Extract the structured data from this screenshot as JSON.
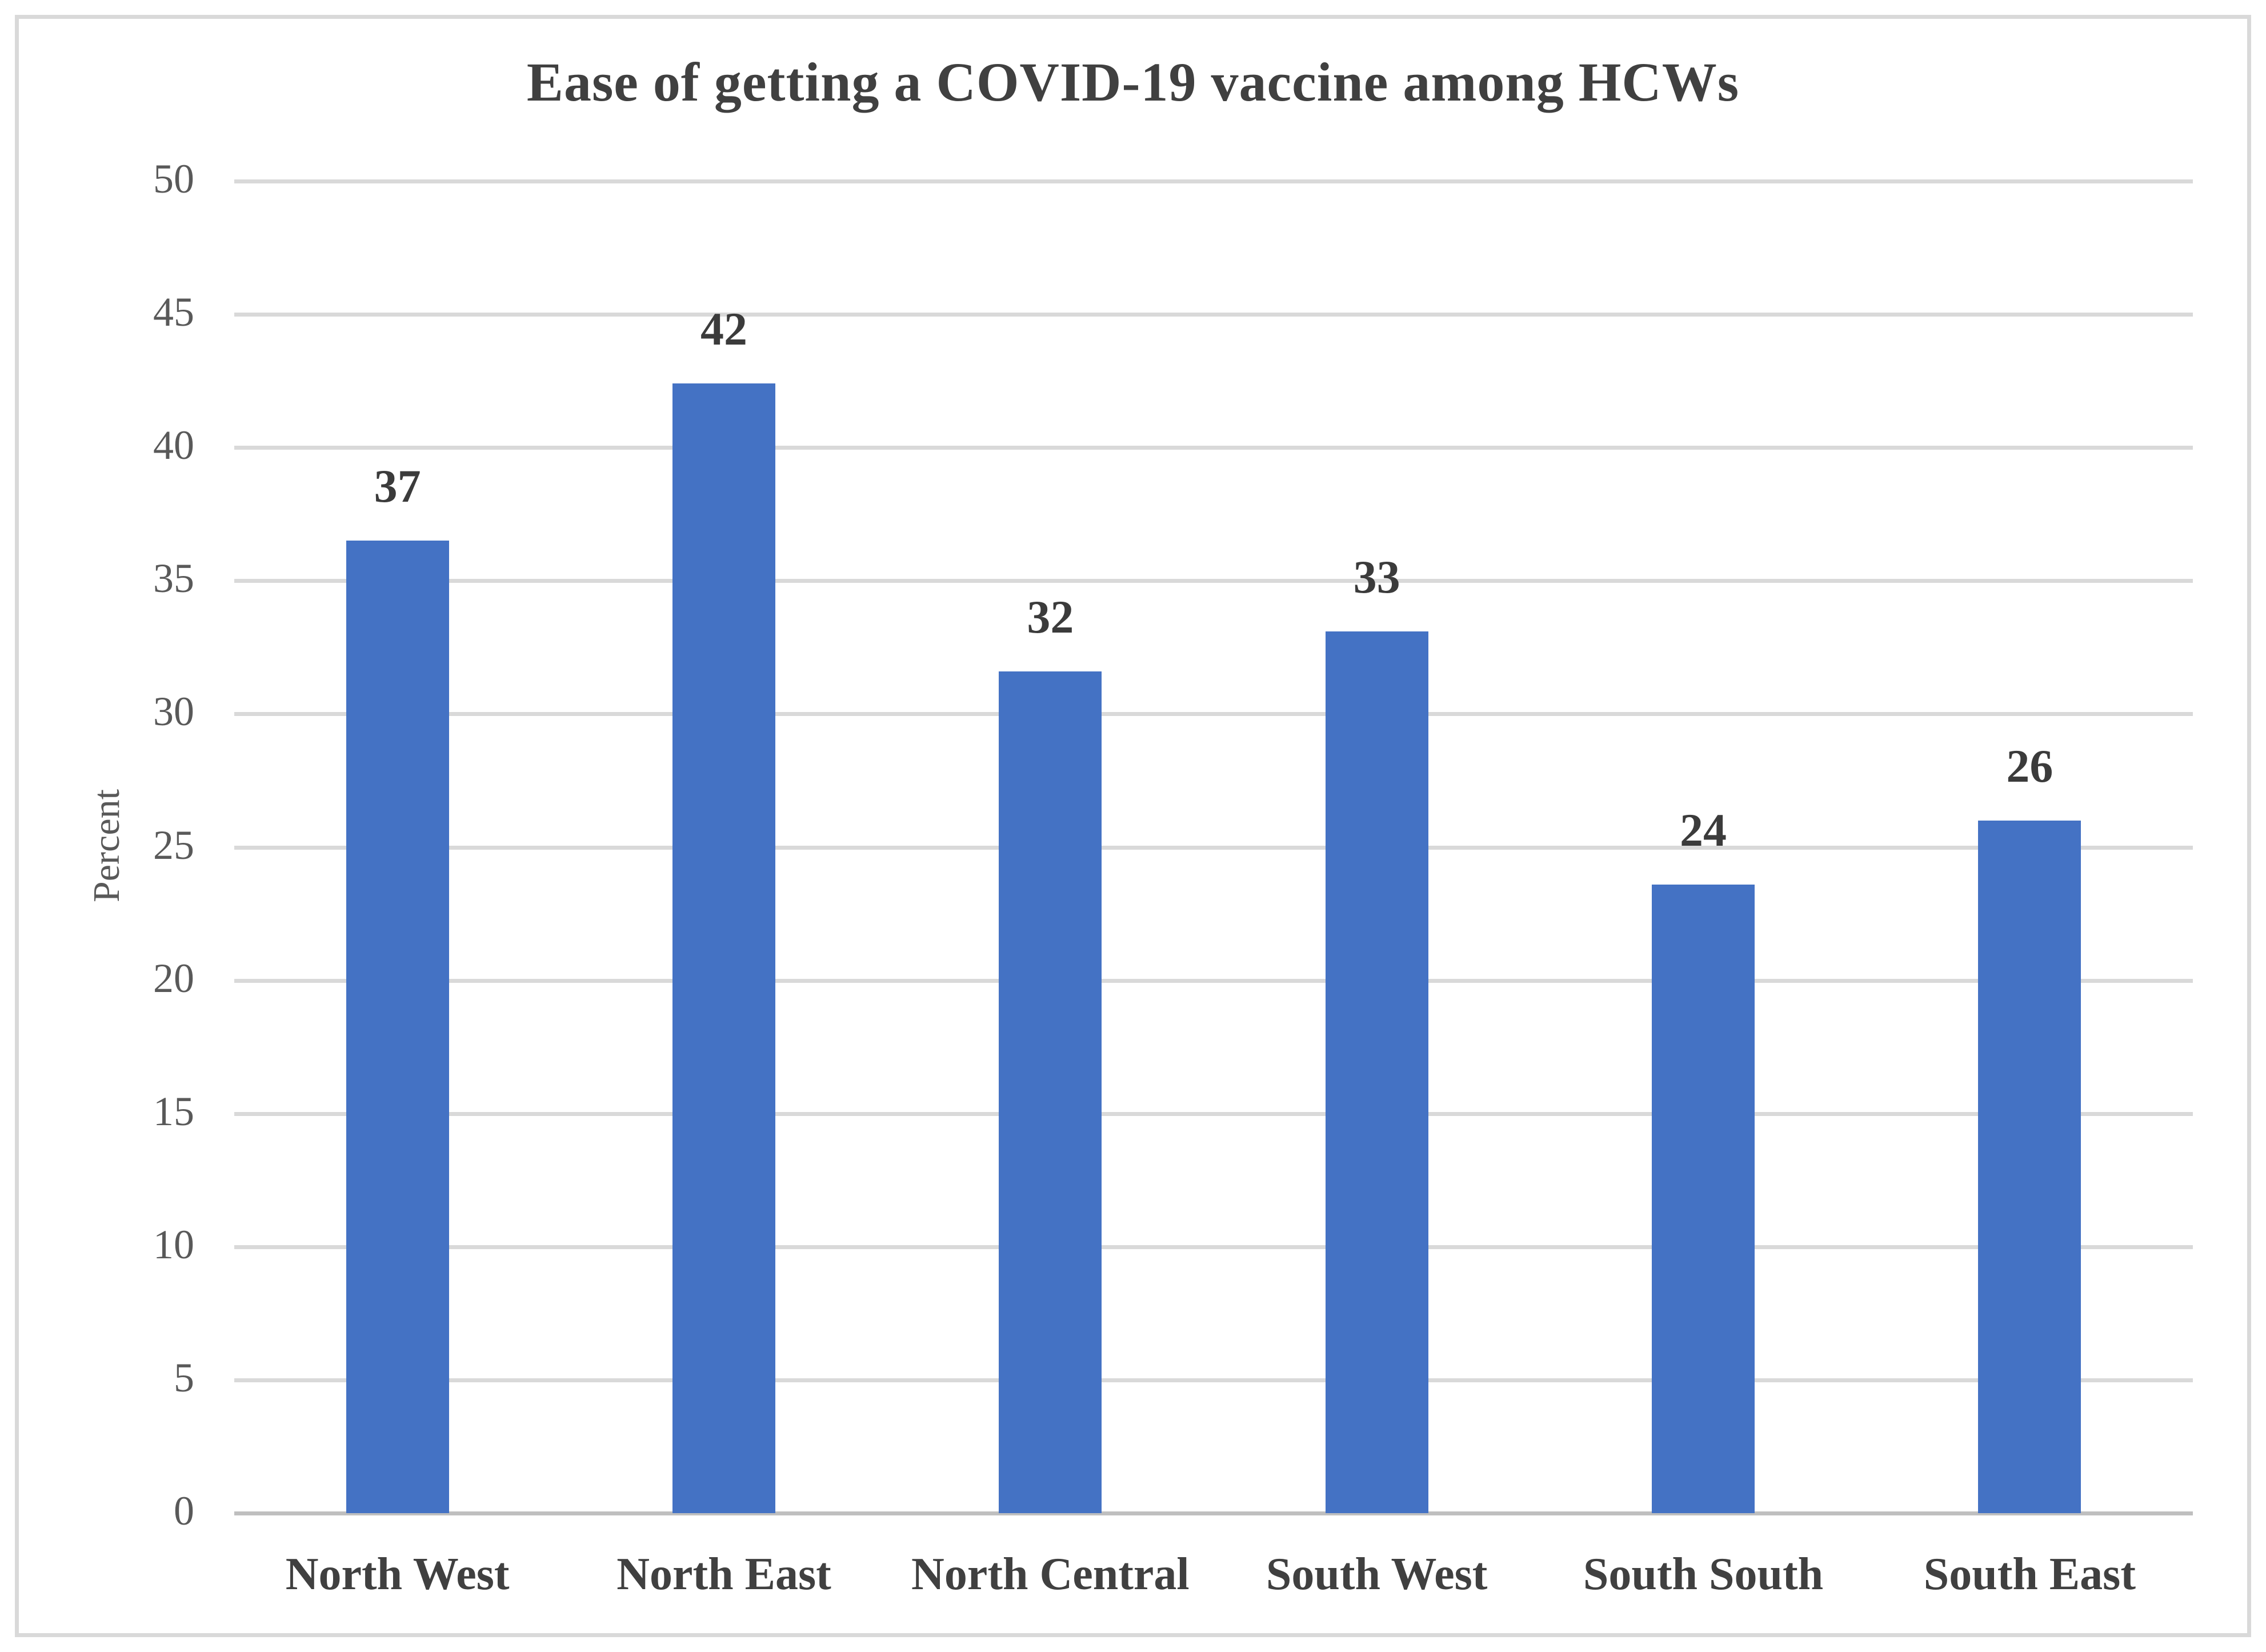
{
  "chart_data": {
    "type": "bar",
    "title": "Ease of getting a COVID-19 vaccine among HCWs",
    "categories": [
      "North West",
      "North East",
      "North Central",
      "South West",
      "South South",
      "South East"
    ],
    "values": [
      37,
      42,
      32,
      33,
      24,
      26
    ],
    "data_labels": [
      "37",
      "42",
      "32",
      "33",
      "24",
      "26"
    ],
    "precise_values": [
      36.5,
      42.4,
      31.6,
      33.1,
      23.6,
      26.0
    ],
    "xlabel": "",
    "ylabel": "Percent",
    "ylim": [
      0,
      50
    ],
    "yticks": [
      0,
      5,
      10,
      15,
      20,
      25,
      30,
      35,
      40,
      45,
      50
    ],
    "grid": "horizontal",
    "legend": "none",
    "colors": {
      "bar": "#4472C4",
      "gridline": "#D9D9D9",
      "axis_line": "#BFBFBF",
      "title_text": "#404040",
      "data_label_text": "#3B3B3B",
      "category_label_text": "#404040",
      "tick_label_text": "#595959",
      "figure_border": "#D9D9D9",
      "background": "#FFFFFF"
    }
  }
}
